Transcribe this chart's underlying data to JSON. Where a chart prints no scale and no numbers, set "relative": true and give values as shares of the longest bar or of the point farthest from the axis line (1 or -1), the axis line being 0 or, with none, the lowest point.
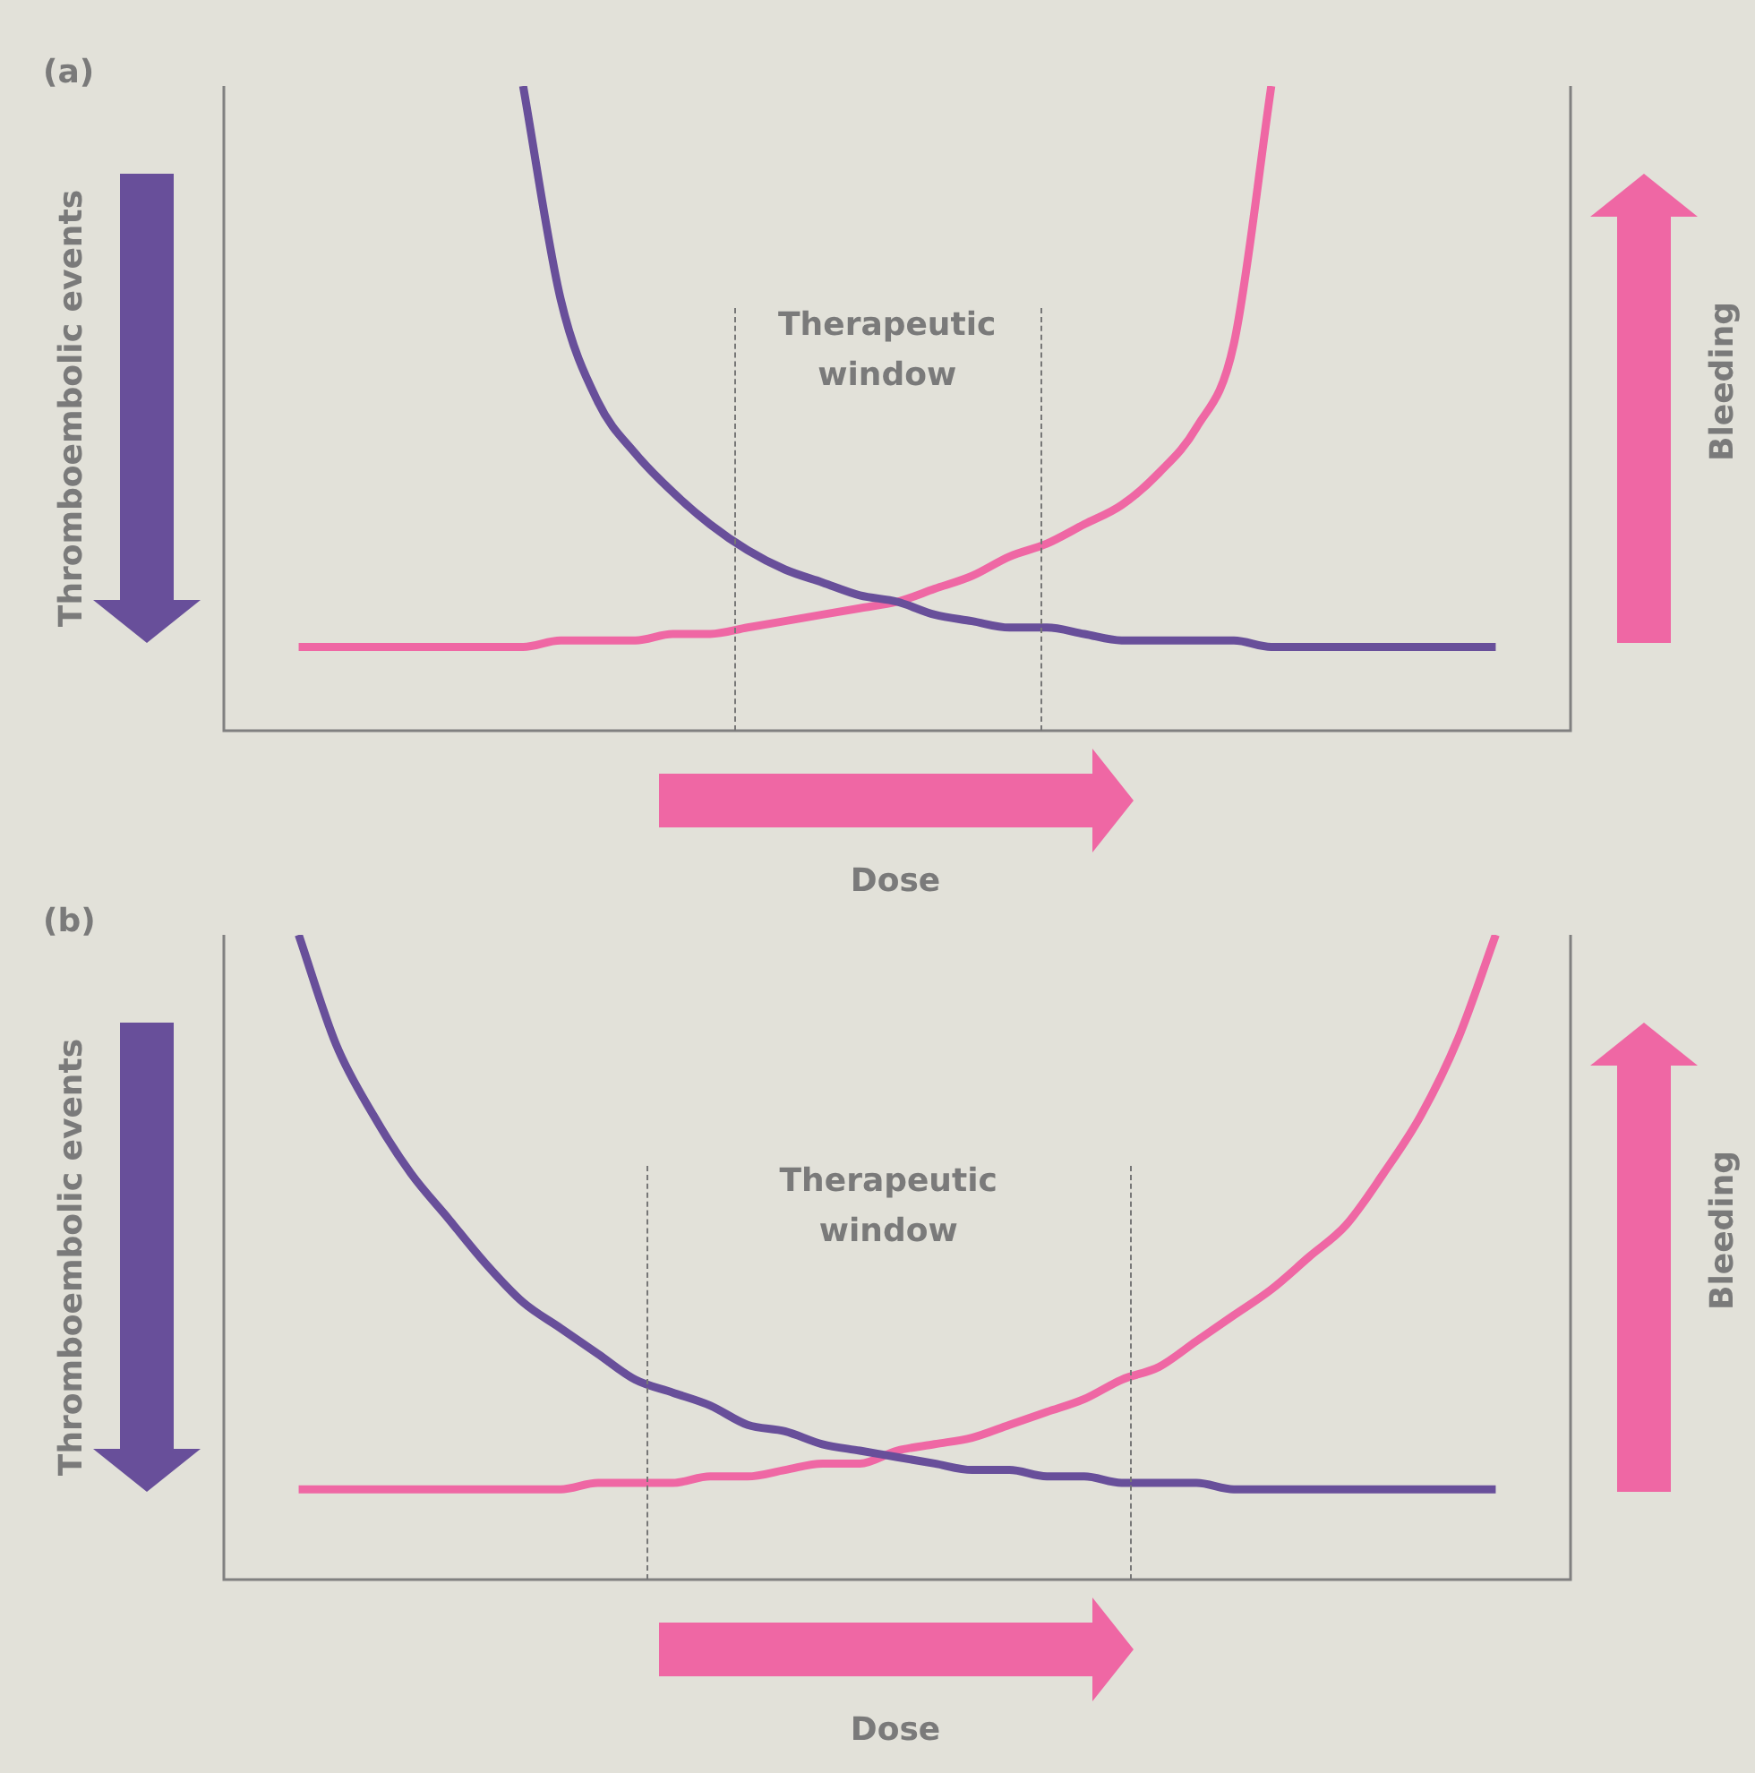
{
  "chart_data": [
    {
      "type": "line",
      "title": "(a)",
      "xlabel": "Dose",
      "ylabel": "Thromboembolic events",
      "y2label": "Bleeding",
      "annotations": [
        "Therapeutic window"
      ],
      "relative": true,
      "categories": [
        null,
        null,
        null,
        null,
        null,
        null,
        null,
        null,
        null,
        null,
        null,
        null,
        null,
        null,
        null,
        null,
        null,
        null,
        null,
        null,
        null,
        null,
        null,
        null,
        null,
        null,
        null,
        null,
        null,
        null,
        null,
        null,
        null,
        null,
        null,
        null,
        null
      ],
      "series": [
        {
          "color": "#684f9a",
          "values": [
            null,
            null,
            null,
            null,
            null,
            null,
            null,
            null,
            1.0,
            0.67,
            0.51,
            0.43,
            0.37,
            0.32,
            0.28,
            0.25,
            0.23,
            0.21,
            0.2,
            0.18,
            0.17,
            0.16,
            0.16,
            0.15,
            0.14,
            0.14,
            0.14,
            0.14,
            0.13,
            0.13,
            0.13,
            0.13,
            0.13,
            0.13,
            0.13,
            null,
            null
          ]
        },
        {
          "color": "#ef67a4",
          "values": [
            null,
            null,
            0.13,
            0.13,
            0.13,
            0.13,
            0.13,
            0.13,
            0.13,
            0.14,
            0.14,
            0.14,
            0.15,
            0.15,
            0.16,
            0.17,
            0.18,
            0.19,
            0.2,
            0.22,
            0.24,
            0.27,
            0.29,
            0.32,
            0.35,
            0.4,
            0.47,
            0.6,
            1.0,
            null,
            null,
            null,
            null,
            null,
            null,
            null,
            null
          ]
        }
      ]
    },
    {
      "type": "line",
      "title": "(b)",
      "xlabel": "Dose",
      "ylabel": "Thromboembolic events",
      "y2label": "Bleeding",
      "annotations": [
        "Therapeutic window"
      ],
      "relative": true,
      "categories": [
        null,
        null,
        null,
        null,
        null,
        null,
        null,
        null,
        null,
        null,
        null,
        null,
        null,
        null,
        null,
        null,
        null,
        null,
        null,
        null,
        null,
        null,
        null,
        null,
        null,
        null,
        null,
        null,
        null,
        null,
        null,
        null,
        null,
        null,
        null,
        null,
        null
      ],
      "series": [
        {
          "color": "#684f9a",
          "values": [
            null,
            null,
            1.0,
            0.83,
            0.72,
            0.63,
            0.56,
            0.49,
            0.43,
            0.39,
            0.35,
            0.31,
            0.29,
            0.27,
            0.24,
            0.23,
            0.21,
            0.2,
            0.19,
            0.18,
            0.17,
            0.17,
            0.16,
            0.16,
            0.15,
            0.15,
            0.15,
            0.14,
            0.14,
            0.14,
            0.14,
            0.14,
            0.14,
            0.14,
            0.14,
            null,
            null
          ]
        },
        {
          "color": "#ef67a4",
          "values": [
            null,
            null,
            0.14,
            0.14,
            0.14,
            0.14,
            0.14,
            0.14,
            0.14,
            0.14,
            0.15,
            0.15,
            0.15,
            0.16,
            0.16,
            0.17,
            0.18,
            0.18,
            0.2,
            0.21,
            0.22,
            0.24,
            0.26,
            0.28,
            0.31,
            0.33,
            0.37,
            0.41,
            0.45,
            0.5,
            0.55,
            0.63,
            0.72,
            0.84,
            1.0,
            null,
            null
          ]
        }
      ]
    }
  ]
}
